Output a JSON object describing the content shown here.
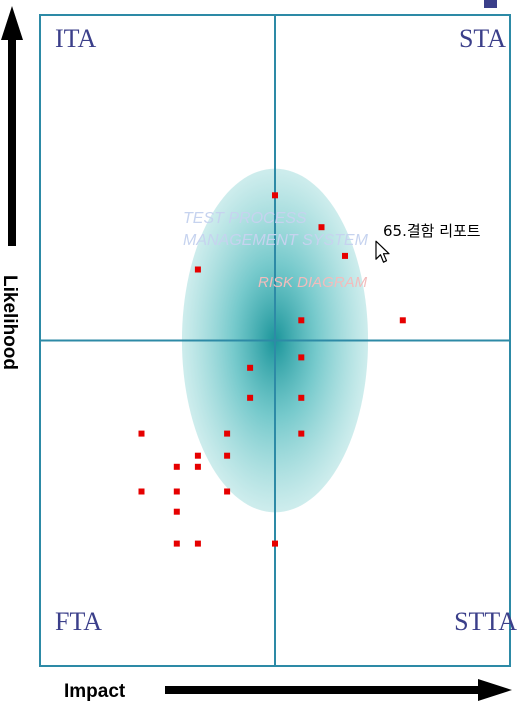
{
  "chart_data": {
    "type": "scatter",
    "title": "",
    "xlabel": "Impact",
    "ylabel": "Likelihood",
    "xlim": [
      0,
      100
    ],
    "ylim": [
      0,
      100
    ],
    "quadrant_labels": {
      "top_left": "ITA",
      "top_right": "STA",
      "bottom_left": "FTA",
      "bottom_right": "STTA"
    },
    "watermark": {
      "line1": "TEST PROCESS",
      "line2": "MANAGEMENT SYSTEM",
      "line3": "RISK DIAGRAM"
    },
    "tooltip": {
      "text": "65.결함 리포트",
      "x": 71.7,
      "y": 65.1
    },
    "risk_zone": {
      "center_x": 50.0,
      "center_y": 50.0,
      "radius_x": 19.8,
      "radius_y": 26.4,
      "color": "#2aa8ad"
    },
    "colors": {
      "border": "#2d8aa6",
      "point": "#e60000",
      "quadrant_text": "#3b3f8a",
      "accent_square": "#3b3f8a"
    },
    "points": [
      {
        "x": 50.0,
        "y": 72.3
      },
      {
        "x": 59.9,
        "y": 67.4
      },
      {
        "x": 64.9,
        "y": 63.0
      },
      {
        "x": 33.6,
        "y": 60.9
      },
      {
        "x": 55.6,
        "y": 53.1
      },
      {
        "x": 77.2,
        "y": 53.1
      },
      {
        "x": 44.7,
        "y": 45.8
      },
      {
        "x": 55.6,
        "y": 47.4
      },
      {
        "x": 44.7,
        "y": 41.2
      },
      {
        "x": 55.6,
        "y": 41.2
      },
      {
        "x": 21.6,
        "y": 35.7
      },
      {
        "x": 39.8,
        "y": 35.7
      },
      {
        "x": 55.6,
        "y": 35.7
      },
      {
        "x": 33.6,
        "y": 32.3
      },
      {
        "x": 39.8,
        "y": 32.3
      },
      {
        "x": 29.1,
        "y": 30.6
      },
      {
        "x": 33.6,
        "y": 30.6
      },
      {
        "x": 21.6,
        "y": 26.8
      },
      {
        "x": 29.1,
        "y": 26.8
      },
      {
        "x": 39.8,
        "y": 26.8
      },
      {
        "x": 29.1,
        "y": 23.7
      },
      {
        "x": 29.1,
        "y": 18.8
      },
      {
        "x": 33.6,
        "y": 18.8
      },
      {
        "x": 50.0,
        "y": 18.8
      }
    ]
  }
}
